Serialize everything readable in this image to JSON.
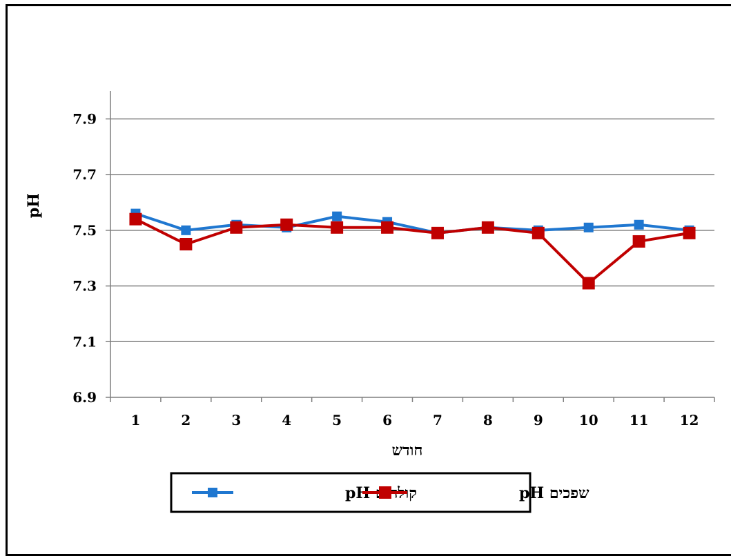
{
  "chart_data": {
    "type": "line",
    "title": "",
    "xlabel": "חודש",
    "ylabel": "pH",
    "categories": [
      "1",
      "2",
      "3",
      "4",
      "5",
      "6",
      "7",
      "8",
      "9",
      "10",
      "11",
      "12"
    ],
    "ylim": [
      6.9,
      8.0
    ],
    "yticks": [
      "6.9",
      "7.1",
      "7.3",
      "7.5",
      "7.7",
      "7.9"
    ],
    "grid": true,
    "legend_position": "bottom",
    "series": [
      {
        "name": "קולחים pH",
        "color": "#1f77d0",
        "marker": "square",
        "values": [
          7.56,
          7.5,
          7.52,
          7.51,
          7.55,
          7.53,
          7.49,
          7.51,
          7.5,
          7.51,
          7.52,
          7.5
        ]
      },
      {
        "name": "שפכים pH",
        "color": "#c00000",
        "marker": "square",
        "values": [
          7.54,
          7.45,
          7.51,
          7.52,
          7.51,
          7.51,
          7.49,
          7.51,
          7.49,
          7.31,
          7.46,
          7.49
        ]
      }
    ]
  }
}
